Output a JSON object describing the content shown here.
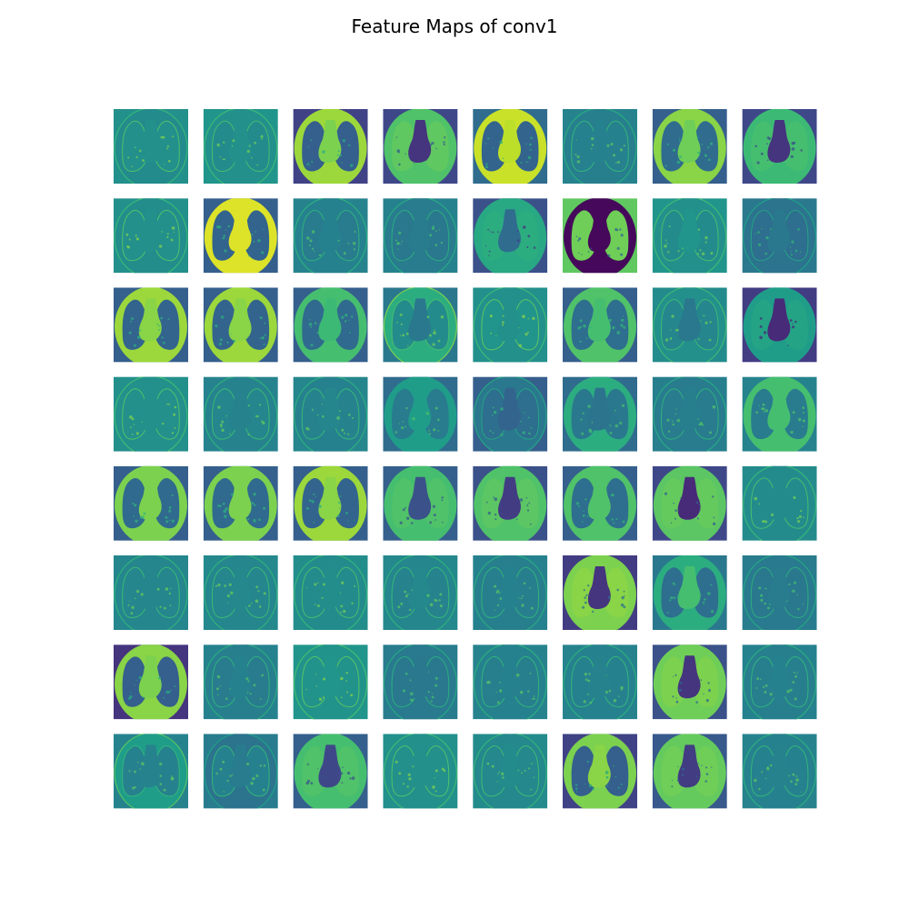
{
  "title": "Feature Maps of conv1",
  "colormap": {
    "name": "viridis",
    "stops": [
      "#440154",
      "#482878",
      "#3e4989",
      "#31688e",
      "#26828e",
      "#1f9e89",
      "#35b779",
      "#6ece58",
      "#b5de2b",
      "#fde725"
    ]
  },
  "grid": {
    "rows": 8,
    "cols": 8
  },
  "feature_maps": [
    {
      "index": 1,
      "style": "edge",
      "bg": 0.5,
      "body": 0.48,
      "lung": 0.5,
      "heart": 0.5
    },
    {
      "index": 2,
      "style": "edge",
      "bg": 0.52,
      "body": 0.5,
      "lung": 0.48,
      "heart": 0.5
    },
    {
      "index": 3,
      "style": "positive",
      "bg": 0.2,
      "body": 0.85,
      "lung": 0.3,
      "heart": 0.8
    },
    {
      "index": 4,
      "style": "negative",
      "bg": 0.22,
      "body": 0.72,
      "lung": 0.75,
      "heart": 0.15
    },
    {
      "index": 5,
      "style": "positive",
      "bg": 0.35,
      "body": 0.92,
      "lung": 0.32,
      "heart": 0.9
    },
    {
      "index": 6,
      "style": "edge",
      "bg": 0.45,
      "body": 0.43,
      "lung": 0.44,
      "heart": 0.44
    },
    {
      "index": 7,
      "style": "positive",
      "bg": 0.3,
      "body": 0.82,
      "lung": 0.35,
      "heart": 0.78
    },
    {
      "index": 8,
      "style": "negative",
      "bg": 0.22,
      "body": 0.68,
      "lung": 0.7,
      "heart": 0.15
    },
    {
      "index": 9,
      "style": "edge",
      "bg": 0.5,
      "body": 0.49,
      "lung": 0.5,
      "heart": 0.5
    },
    {
      "index": 10,
      "style": "positive",
      "bg": 0.3,
      "body": 0.95,
      "lung": 0.32,
      "heart": 0.95
    },
    {
      "index": 11,
      "style": "edge",
      "bg": 0.45,
      "body": 0.44,
      "lung": 0.42,
      "heart": 0.44
    },
    {
      "index": 12,
      "style": "edge",
      "bg": 0.44,
      "body": 0.42,
      "lung": 0.4,
      "heart": 0.42
    },
    {
      "index": 13,
      "style": "negative",
      "bg": 0.25,
      "body": 0.6,
      "lung": 0.62,
      "heart": 0.35
    },
    {
      "index": 14,
      "style": "negative",
      "bg": 0.75,
      "body": 0.02,
      "lung": 0.78,
      "heart": 0.02
    },
    {
      "index": 15,
      "style": "edge",
      "bg": 0.52,
      "body": 0.5,
      "lung": 0.48,
      "heart": 0.52
    },
    {
      "index": 16,
      "style": "edge",
      "bg": 0.4,
      "body": 0.38,
      "lung": 0.36,
      "heart": 0.4
    },
    {
      "index": 17,
      "style": "positive",
      "bg": 0.3,
      "body": 0.85,
      "lung": 0.32,
      "heart": 0.82
    },
    {
      "index": 18,
      "style": "positive",
      "bg": 0.3,
      "body": 0.85,
      "lung": 0.32,
      "heart": 0.82
    },
    {
      "index": 19,
      "style": "positive",
      "bg": 0.3,
      "body": 0.7,
      "lung": 0.34,
      "heart": 0.68
    },
    {
      "index": 20,
      "style": "edge",
      "bg": 0.4,
      "body": 0.62,
      "lung": 0.48,
      "heart": 0.4
    },
    {
      "index": 21,
      "style": "edge",
      "bg": 0.5,
      "body": 0.5,
      "lung": 0.52,
      "heart": 0.5
    },
    {
      "index": 22,
      "style": "positive",
      "bg": 0.3,
      "body": 0.72,
      "lung": 0.36,
      "heart": 0.7
    },
    {
      "index": 23,
      "style": "edge",
      "bg": 0.48,
      "body": 0.5,
      "lung": 0.46,
      "heart": 0.4
    },
    {
      "index": 24,
      "style": "negative",
      "bg": 0.18,
      "body": 0.55,
      "lung": 0.58,
      "heart": 0.12
    },
    {
      "index": 25,
      "style": "edge",
      "bg": 0.5,
      "body": 0.5,
      "lung": 0.5,
      "heart": 0.5
    },
    {
      "index": 26,
      "style": "edge",
      "bg": 0.45,
      "body": 0.45,
      "lung": 0.46,
      "heart": 0.45
    },
    {
      "index": 27,
      "style": "edge",
      "bg": 0.46,
      "body": 0.44,
      "lung": 0.45,
      "heart": 0.46
    },
    {
      "index": 28,
      "style": "positive",
      "bg": 0.35,
      "body": 0.55,
      "lung": 0.42,
      "heart": 0.55
    },
    {
      "index": 29,
      "style": "edge",
      "bg": 0.3,
      "body": 0.4,
      "lung": 0.36,
      "heart": 0.32
    },
    {
      "index": 30,
      "style": "positive",
      "bg": 0.35,
      "body": 0.62,
      "lung": 0.4,
      "heart": 0.38
    },
    {
      "index": 31,
      "style": "edge",
      "bg": 0.43,
      "body": 0.42,
      "lung": 0.42,
      "heart": 0.43
    },
    {
      "index": 32,
      "style": "positive",
      "bg": 0.45,
      "body": 0.7,
      "lung": 0.42,
      "heart": 0.7
    },
    {
      "index": 33,
      "style": "positive",
      "bg": 0.3,
      "body": 0.8,
      "lung": 0.34,
      "heart": 0.8
    },
    {
      "index": 34,
      "style": "positive",
      "bg": 0.3,
      "body": 0.8,
      "lung": 0.34,
      "heart": 0.8
    },
    {
      "index": 35,
      "style": "positive",
      "bg": 0.3,
      "body": 0.85,
      "lung": 0.32,
      "heart": 0.82
    },
    {
      "index": 36,
      "style": "negative",
      "bg": 0.3,
      "body": 0.7,
      "lung": 0.72,
      "heart": 0.25
    },
    {
      "index": 37,
      "style": "negative",
      "bg": 0.25,
      "body": 0.72,
      "lung": 0.74,
      "heart": 0.18
    },
    {
      "index": 38,
      "style": "positive",
      "bg": 0.3,
      "body": 0.72,
      "lung": 0.36,
      "heart": 0.72
    },
    {
      "index": 39,
      "style": "negative",
      "bg": 0.22,
      "body": 0.74,
      "lung": 0.76,
      "heart": 0.12
    },
    {
      "index": 40,
      "style": "edge",
      "bg": 0.48,
      "body": 0.48,
      "lung": 0.48,
      "heart": 0.48
    },
    {
      "index": 41,
      "style": "edge",
      "bg": 0.46,
      "body": 0.46,
      "lung": 0.46,
      "heart": 0.46
    },
    {
      "index": 42,
      "style": "edge",
      "bg": 0.47,
      "body": 0.46,
      "lung": 0.46,
      "heart": 0.47
    },
    {
      "index": 43,
      "style": "edge",
      "bg": 0.49,
      "body": 0.48,
      "lung": 0.48,
      "heart": 0.49
    },
    {
      "index": 44,
      "style": "edge",
      "bg": 0.47,
      "body": 0.46,
      "lung": 0.45,
      "heart": 0.47
    },
    {
      "index": 45,
      "style": "edge",
      "bg": 0.44,
      "body": 0.43,
      "lung": 0.43,
      "heart": 0.44
    },
    {
      "index": 46,
      "style": "negative",
      "bg": 0.18,
      "body": 0.8,
      "lung": 0.82,
      "heart": 0.15
    },
    {
      "index": 47,
      "style": "positive",
      "bg": 0.4,
      "body": 0.62,
      "lung": 0.36,
      "heart": 0.7
    },
    {
      "index": 48,
      "style": "edge",
      "bg": 0.42,
      "body": 0.41,
      "lung": 0.4,
      "heart": 0.42
    },
    {
      "index": 49,
      "style": "positive",
      "bg": 0.15,
      "body": 0.82,
      "lung": 0.3,
      "heart": 0.8
    },
    {
      "index": 50,
      "style": "edge",
      "bg": 0.44,
      "body": 0.43,
      "lung": 0.42,
      "heart": 0.44
    },
    {
      "index": 51,
      "style": "edge",
      "bg": 0.52,
      "body": 0.51,
      "lung": 0.51,
      "heart": 0.52
    },
    {
      "index": 52,
      "style": "edge",
      "bg": 0.42,
      "body": 0.41,
      "lung": 0.4,
      "heart": 0.4
    },
    {
      "index": 53,
      "style": "edge",
      "bg": 0.45,
      "body": 0.44,
      "lung": 0.43,
      "heart": 0.44
    },
    {
      "index": 54,
      "style": "edge",
      "bg": 0.45,
      "body": 0.44,
      "lung": 0.44,
      "heart": 0.45
    },
    {
      "index": 55,
      "style": "negative",
      "bg": 0.25,
      "body": 0.78,
      "lung": 0.8,
      "heart": 0.15
    },
    {
      "index": 56,
      "style": "edge",
      "bg": 0.44,
      "body": 0.43,
      "lung": 0.43,
      "heart": 0.44
    },
    {
      "index": 57,
      "style": "edge",
      "bg": 0.45,
      "body": 0.55,
      "lung": 0.44,
      "heart": 0.45
    },
    {
      "index": 58,
      "style": "edge",
      "bg": 0.42,
      "body": 0.38,
      "lung": 0.44,
      "heart": 0.42
    },
    {
      "index": 59,
      "style": "negative",
      "bg": 0.3,
      "body": 0.7,
      "lung": 0.72,
      "heart": 0.22
    },
    {
      "index": 60,
      "style": "edge",
      "bg": 0.5,
      "body": 0.5,
      "lung": 0.5,
      "heart": 0.5
    },
    {
      "index": 61,
      "style": "edge",
      "bg": 0.48,
      "body": 0.47,
      "lung": 0.47,
      "heart": 0.48
    },
    {
      "index": 62,
      "style": "positive",
      "bg": 0.2,
      "body": 0.8,
      "lung": 0.3,
      "heart": 0.82
    },
    {
      "index": 63,
      "style": "negative",
      "bg": 0.28,
      "body": 0.76,
      "lung": 0.78,
      "heart": 0.18
    },
    {
      "index": 64,
      "style": "edge",
      "bg": 0.45,
      "body": 0.44,
      "lung": 0.44,
      "heart": 0.45
    }
  ]
}
